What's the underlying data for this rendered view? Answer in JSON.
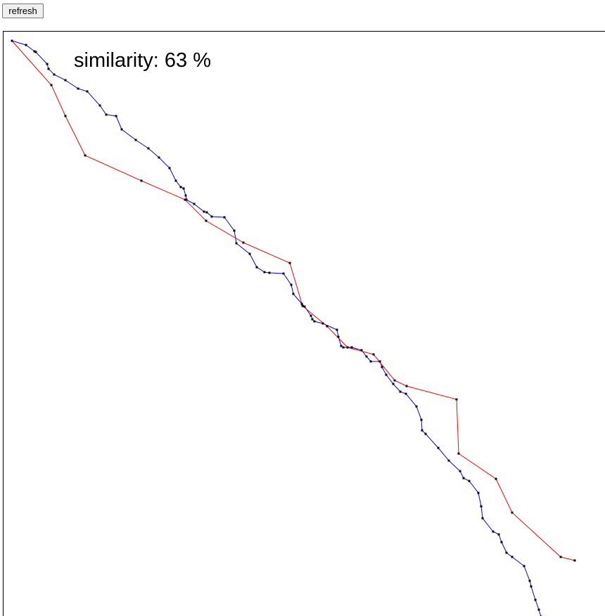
{
  "toolbar": {
    "refresh_label": "refresh"
  },
  "similarity": {
    "label": "similarity:",
    "value": 63,
    "unit": "%"
  },
  "colors": {
    "blue_path": "#0000ff",
    "red_path": "#ff0000",
    "vertex": "#000000",
    "canvas_border": "#000000"
  },
  "chart_data": {
    "type": "line",
    "series": [
      {
        "key": "blue",
        "points": [
          [
            16,
            57
          ],
          [
            36,
            63
          ],
          [
            48,
            72
          ],
          [
            50,
            73
          ],
          [
            66,
            90
          ],
          [
            68,
            97
          ],
          [
            76,
            105
          ],
          [
            92,
            113
          ],
          [
            110,
            125
          ],
          [
            123,
            129
          ],
          [
            141,
            149
          ],
          [
            150,
            162
          ],
          [
            164,
            164
          ],
          [
            172,
            183
          ],
          [
            192,
            198
          ],
          [
            210,
            210
          ],
          [
            225,
            223
          ],
          [
            240,
            238
          ],
          [
            249,
            256
          ],
          [
            256,
            265
          ],
          [
            260,
            267
          ],
          [
            263,
            277
          ],
          [
            264,
            283
          ],
          [
            275,
            289
          ],
          [
            289,
            300
          ],
          [
            293,
            301
          ],
          [
            300,
            307
          ],
          [
            318,
            308
          ],
          [
            332,
            327
          ],
          [
            335,
            345
          ],
          [
            354,
            360
          ],
          [
            364,
            379
          ],
          [
            375,
            386
          ],
          [
            382,
            387
          ],
          [
            402,
            388
          ],
          [
            413,
            404
          ],
          [
            416,
            417
          ],
          [
            428,
            431
          ],
          [
            432,
            435
          ],
          [
            441,
            448
          ],
          [
            443,
            453
          ],
          [
            446,
            456
          ],
          [
            458,
            459
          ],
          [
            478,
            468
          ],
          [
            480,
            478
          ],
          [
            484,
            491
          ],
          [
            487,
            493
          ],
          [
            499,
            493
          ],
          [
            513,
            497
          ],
          [
            520,
            506
          ],
          [
            526,
            513
          ],
          [
            539,
            513
          ],
          [
            542,
            521
          ],
          [
            548,
            532
          ],
          [
            558,
            545
          ],
          [
            568,
            556
          ],
          [
            576,
            559
          ],
          [
            591,
            577
          ],
          [
            598,
            596
          ],
          [
            599,
            611
          ],
          [
            604,
            616
          ],
          [
            622,
            636
          ],
          [
            637,
            654
          ],
          [
            653,
            669
          ],
          [
            658,
            679
          ],
          [
            666,
            683
          ],
          [
            679,
            700
          ],
          [
            683,
            719
          ],
          [
            685,
            736
          ],
          [
            700,
            755
          ],
          [
            708,
            759
          ],
          [
            712,
            770
          ],
          [
            719,
            785
          ],
          [
            727,
            791
          ],
          [
            744,
            804
          ],
          [
            752,
            825
          ],
          [
            754,
            833
          ],
          [
            760,
            852
          ],
          [
            765,
            866
          ],
          [
            768,
            876
          ]
        ]
      },
      {
        "key": "red",
        "points": [
          [
            16,
            57
          ],
          [
            72,
            120
          ],
          [
            92,
            164
          ],
          [
            120,
            220
          ],
          [
            200,
            256
          ],
          [
            262,
            283
          ],
          [
            292,
            313
          ],
          [
            345,
            344
          ],
          [
            411,
            373
          ],
          [
            429,
            434
          ],
          [
            464,
            463
          ],
          [
            493,
            493
          ],
          [
            530,
            503
          ],
          [
            560,
            540
          ],
          [
            577,
            548
          ],
          [
            648,
            567
          ],
          [
            651,
            644
          ],
          [
            704,
            680
          ],
          [
            727,
            728
          ],
          [
            796,
            791
          ],
          [
            816,
            796
          ]
        ]
      }
    ]
  }
}
